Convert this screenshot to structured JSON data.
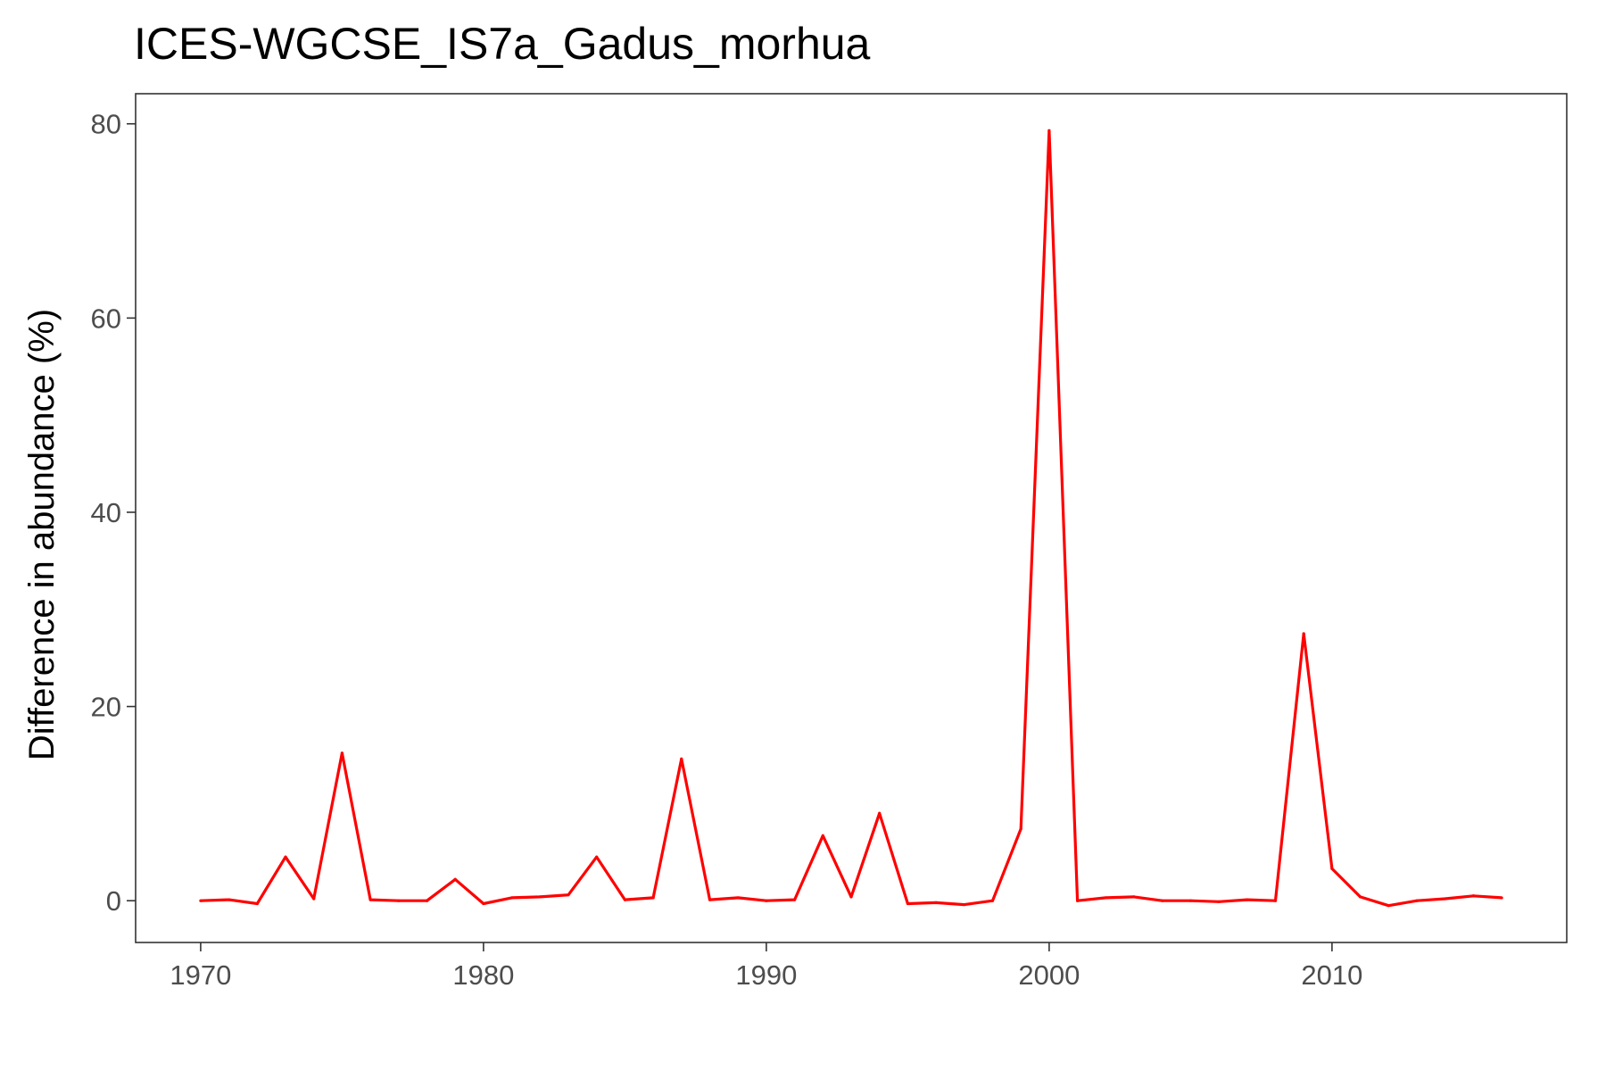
{
  "chart_data": {
    "type": "line",
    "title": "ICES-WGCSE_IS7a_Gadus_morhua",
    "xlabel": "",
    "ylabel": "Difference in abundance (%)",
    "xlim": [
      1967.7,
      2018.3
    ],
    "ylim": [
      -4.3,
      83.1
    ],
    "xticks": [
      1970,
      1980,
      1990,
      2000,
      2010
    ],
    "xtick_labels": [
      "1970",
      "1980",
      "1990",
      "2000",
      "2010"
    ],
    "yticks": [
      0,
      20,
      40,
      60,
      80
    ],
    "ytick_labels": [
      "0",
      "20",
      "40",
      "60",
      "80"
    ],
    "grid": false,
    "panel_border": true,
    "series": [
      {
        "color": "#ff0000",
        "x": [
          1970,
          1971,
          1972,
          1973,
          1974,
          1975,
          1976,
          1977,
          1978,
          1979,
          1980,
          1981,
          1982,
          1983,
          1984,
          1985,
          1986,
          1987,
          1988,
          1989,
          1990,
          1991,
          1992,
          1993,
          1994,
          1995,
          1996,
          1997,
          1998,
          1999,
          2000,
          2001,
          2002,
          2003,
          2004,
          2005,
          2006,
          2007,
          2008,
          2009,
          2010,
          2011,
          2012,
          2013,
          2014,
          2015,
          2016
        ],
        "values": [
          0.0,
          0.1,
          -0.3,
          4.5,
          0.2,
          15.2,
          0.1,
          0.0,
          0.0,
          2.2,
          -0.3,
          0.3,
          0.4,
          0.6,
          4.5,
          0.1,
          0.3,
          14.6,
          0.1,
          0.3,
          0.0,
          0.1,
          6.7,
          0.4,
          9.0,
          -0.3,
          -0.2,
          -0.4,
          0.0,
          7.4,
          79.3,
          0.0,
          0.3,
          0.4,
          0.0,
          0.0,
          -0.1,
          0.1,
          0.0,
          27.5,
          3.3,
          0.4,
          -0.5,
          0.0,
          0.2,
          0.5,
          0.3
        ]
      }
    ]
  }
}
